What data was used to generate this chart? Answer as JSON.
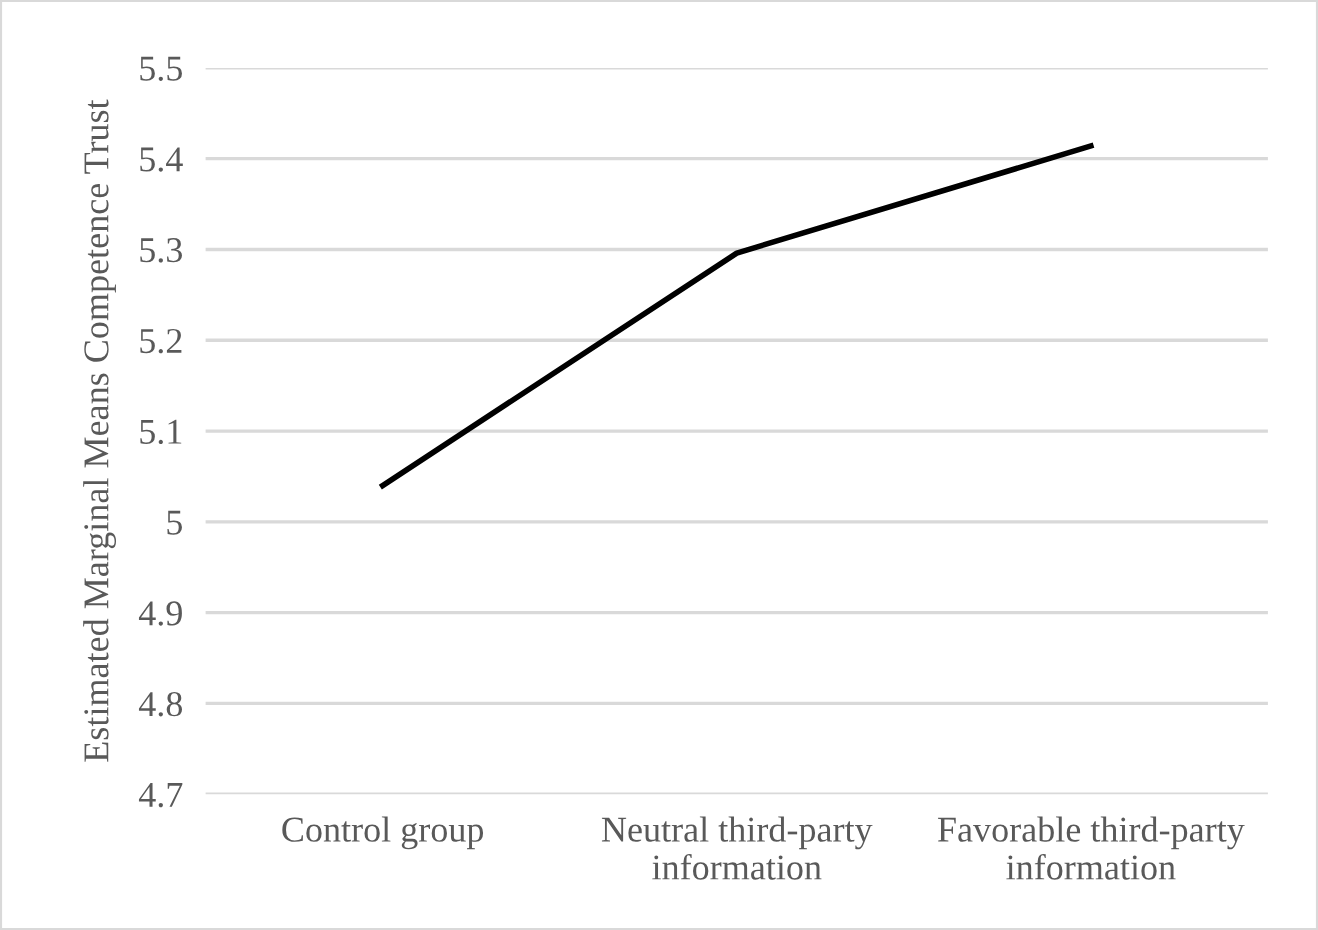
{
  "chart_data": {
    "type": "line",
    "ylabel": "Estimated Marginal Means Competence Trust",
    "categories": [
      "Control group",
      "Neutral third-party\ninformation",
      "Favorable third-party\ninformation"
    ],
    "series": [
      {
        "color": "#000000",
        "values": [
          5.04,
          5.296,
          5.414
        ]
      }
    ],
    "ylim": [
      4.7,
      5.5
    ],
    "yticks": [
      4.7,
      4.8,
      4.9,
      {
        "value": 5.0,
        "label": "5"
      },
      5.1,
      5.2,
      5.3,
      5.4,
      5.5
    ],
    "grid": "y",
    "legend": false,
    "marker": "none",
    "line_style": "solid"
  }
}
